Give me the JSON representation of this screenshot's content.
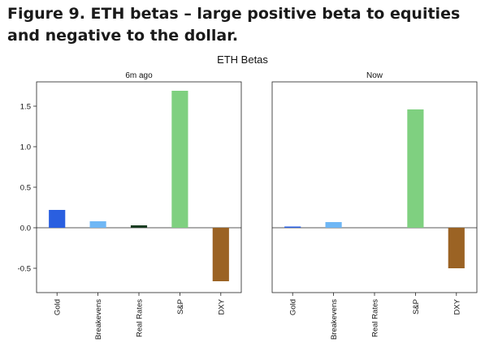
{
  "figure_title": "Figure 9. ETH betas – large positive beta to equities and negative to the dollar.",
  "chart_data": [
    {
      "type": "bar",
      "suptitle": "ETH Betas",
      "title": "6m ago",
      "categories": [
        "Gold",
        "Breakevens",
        "Real Rates",
        "S&P",
        "DXY"
      ],
      "values": [
        0.22,
        0.08,
        0.03,
        1.69,
        -0.66
      ],
      "colors": [
        "#2a5fe0",
        "#6fb7f5",
        "#1a3d22",
        "#7fd080",
        "#9b6324"
      ],
      "ylim": [
        -0.8,
        1.8
      ],
      "yticks": [
        -0.5,
        0.0,
        0.5,
        1.0,
        1.5
      ],
      "ytick_labels": [
        "-0.5",
        "0.0",
        "0.5",
        "1.0",
        "1.5"
      ],
      "zero_line": true
    },
    {
      "type": "bar",
      "title": "Now",
      "categories": [
        "Gold",
        "Breakevens",
        "Real Rates",
        "S&P",
        "DXY"
      ],
      "values": [
        0.01,
        0.07,
        0.0,
        1.46,
        -0.5
      ],
      "colors": [
        "#2a5fe0",
        "#6fb7f5",
        "#1a3d22",
        "#7fd080",
        "#9b6324"
      ],
      "ylim": [
        -0.8,
        1.8
      ],
      "zero_line": true
    }
  ]
}
